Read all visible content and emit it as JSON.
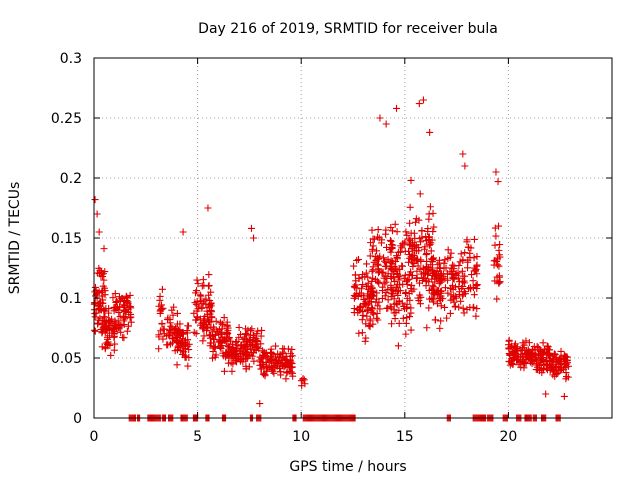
{
  "chart_data": {
    "type": "scatter",
    "title": "Day 216 of 2019, SRMTID for receiver bula",
    "xlabel": "GPS time / hours",
    "ylabel": "SRMTID / TECUs",
    "xlim": [
      0,
      25
    ],
    "ylim": [
      0,
      0.3
    ],
    "x_ticks": [
      "0",
      "5",
      "10",
      "15",
      "20"
    ],
    "y_ticks": [
      "0",
      "0.05",
      "0.1",
      "0.15",
      "0.2",
      "0.25",
      "0.3"
    ],
    "grid": true,
    "marker": "plus",
    "point_color": "#e00000",
    "clusters": [
      {
        "x_range": [
          0.0,
          0.6
        ],
        "y_mean": 0.095,
        "y_spread": 0.032,
        "n": 70
      },
      {
        "x_range": [
          0.5,
          1.0
        ],
        "y_mean": 0.075,
        "y_spread": 0.022,
        "n": 40
      },
      {
        "x_range": [
          0.9,
          1.8
        ],
        "y_mean": 0.09,
        "y_spread": 0.022,
        "n": 70
      },
      {
        "x_range": [
          3.1,
          3.4
        ],
        "y_mean": 0.085,
        "y_spread": 0.025,
        "n": 20
      },
      {
        "x_range": [
          3.5,
          4.0
        ],
        "y_mean": 0.075,
        "y_spread": 0.02,
        "n": 30
      },
      {
        "x_range": [
          3.9,
          4.6
        ],
        "y_mean": 0.065,
        "y_spread": 0.02,
        "n": 60
      },
      {
        "x_range": [
          4.8,
          5.7
        ],
        "y_mean": 0.09,
        "y_spread": 0.025,
        "n": 70
      },
      {
        "x_range": [
          5.6,
          6.5
        ],
        "y_mean": 0.065,
        "y_spread": 0.02,
        "n": 70
      },
      {
        "x_range": [
          6.4,
          7.5
        ],
        "y_mean": 0.055,
        "y_spread": 0.015,
        "n": 90
      },
      {
        "x_range": [
          7.3,
          8.1
        ],
        "y_mean": 0.062,
        "y_spread": 0.015,
        "n": 50
      },
      {
        "x_range": [
          8.0,
          9.6
        ],
        "y_mean": 0.047,
        "y_spread": 0.012,
        "n": 120
      },
      {
        "x_range": [
          10.0,
          10.2
        ],
        "y_mean": 0.03,
        "y_spread": 0.006,
        "n": 6
      },
      {
        "x_range": [
          12.5,
          13.5
        ],
        "y_mean": 0.1,
        "y_spread": 0.03,
        "n": 80
      },
      {
        "x_range": [
          13.3,
          14.5
        ],
        "y_mean": 0.12,
        "y_spread": 0.04,
        "n": 100
      },
      {
        "x_range": [
          14.3,
          15.4
        ],
        "y_mean": 0.12,
        "y_spread": 0.045,
        "n": 110
      },
      {
        "x_range": [
          15.2,
          16.4
        ],
        "y_mean": 0.13,
        "y_spread": 0.045,
        "n": 110
      },
      {
        "x_range": [
          16.3,
          17.4
        ],
        "y_mean": 0.11,
        "y_spread": 0.035,
        "n": 90
      },
      {
        "x_range": [
          17.3,
          18.5
        ],
        "y_mean": 0.12,
        "y_spread": 0.035,
        "n": 80
      },
      {
        "x_range": [
          19.3,
          19.6
        ],
        "y_mean": 0.13,
        "y_spread": 0.045,
        "n": 25
      },
      {
        "x_range": [
          20.0,
          21.2
        ],
        "y_mean": 0.053,
        "y_spread": 0.012,
        "n": 90
      },
      {
        "x_range": [
          21.1,
          22.0
        ],
        "y_mean": 0.05,
        "y_spread": 0.013,
        "n": 70
      },
      {
        "x_range": [
          22.0,
          22.9
        ],
        "y_mean": 0.045,
        "y_spread": 0.013,
        "n": 70
      }
    ],
    "highlight_points": [
      {
        "x": 0.05,
        "y": 0.182
      },
      {
        "x": 0.15,
        "y": 0.17
      },
      {
        "x": 0.25,
        "y": 0.155
      },
      {
        "x": 4.3,
        "y": 0.155
      },
      {
        "x": 5.5,
        "y": 0.175
      },
      {
        "x": 7.6,
        "y": 0.158
      },
      {
        "x": 7.7,
        "y": 0.15
      },
      {
        "x": 8.0,
        "y": 0.012
      },
      {
        "x": 13.8,
        "y": 0.25
      },
      {
        "x": 14.1,
        "y": 0.245
      },
      {
        "x": 14.6,
        "y": 0.258
      },
      {
        "x": 15.7,
        "y": 0.262
      },
      {
        "x": 15.9,
        "y": 0.265
      },
      {
        "x": 16.2,
        "y": 0.238
      },
      {
        "x": 15.3,
        "y": 0.198
      },
      {
        "x": 17.8,
        "y": 0.22
      },
      {
        "x": 17.9,
        "y": 0.21
      },
      {
        "x": 19.4,
        "y": 0.205
      },
      {
        "x": 19.5,
        "y": 0.197
      },
      {
        "x": 21.8,
        "y": 0.02
      },
      {
        "x": 22.7,
        "y": 0.018
      }
    ],
    "zero_runs": [
      [
        1.7,
        2.0
      ],
      [
        2.1,
        2.2
      ],
      [
        2.6,
        3.0
      ],
      [
        3.05,
        3.2
      ],
      [
        3.3,
        3.45
      ],
      [
        3.6,
        3.8
      ],
      [
        4.2,
        4.5
      ],
      [
        4.8,
        5.0
      ],
      [
        5.4,
        5.55
      ],
      [
        6.2,
        6.35
      ],
      [
        7.55,
        7.65
      ],
      [
        7.85,
        8.05
      ],
      [
        9.6,
        9.75
      ],
      [
        10.1,
        12.6
      ],
      [
        17.05,
        17.2
      ],
      [
        18.3,
        18.9
      ],
      [
        19.0,
        19.25
      ],
      [
        19.75,
        19.95
      ],
      [
        20.4,
        20.6
      ],
      [
        20.8,
        21.1
      ],
      [
        21.2,
        21.35
      ],
      [
        21.6,
        21.8
      ],
      [
        22.3,
        22.5
      ]
    ]
  }
}
